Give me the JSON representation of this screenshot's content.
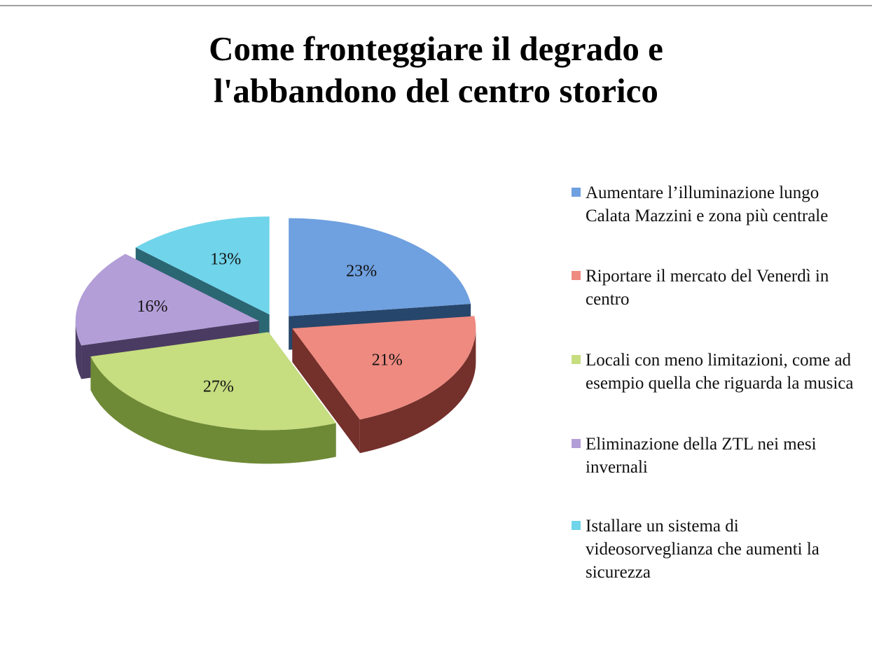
{
  "chart_data": {
    "type": "pie",
    "style": "3d-exploded",
    "title": "Come fronteggiare il degrado e l'abbandono del centro storico",
    "title_lines": [
      "Come fronteggiare il degrado e",
      "l'abbandono del centro storico"
    ],
    "legend_position": "right",
    "slices": [
      {
        "label": "Aumentare l’illuminazione lungo Calata Mazzini e zona più centrale",
        "value": 23,
        "value_label": "23%",
        "color": "#6fa0df",
        "side_color": "#27466b"
      },
      {
        "label": "Riportare il mercato del Venerdì in centro",
        "value": 21,
        "value_label": "21%",
        "color": "#ee8a80",
        "side_color": "#74302b"
      },
      {
        "label": "Locali con meno limitazioni, come ad esempio quella che riguarda la musica",
        "value": 27,
        "value_label": "27%",
        "color": "#c6dd80",
        "side_color": "#6e8a36"
      },
      {
        "label": "Eliminazione della ZTL nei mesi invernali",
        "value": 16,
        "value_label": "16%",
        "color": "#b39ed8",
        "side_color": "#4a3b63"
      },
      {
        "label": " Istallare un sistema di videosorveglianza che aumenti la sicurezza",
        "value": 13,
        "value_label": "13%",
        "color": "#70d4ea",
        "side_color": "#2b6673"
      }
    ]
  }
}
